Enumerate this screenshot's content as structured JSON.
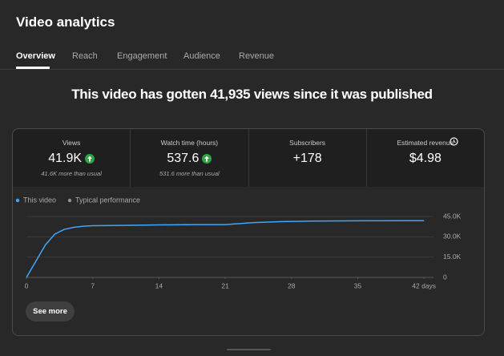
{
  "header": {
    "title": "Video analytics"
  },
  "tabs": [
    "Overview",
    "Reach",
    "Engagement",
    "Audience",
    "Revenue"
  ],
  "headline": "This video has gotten 41,935 views since it was published",
  "metrics": [
    {
      "label": "Views",
      "value": "41.9K",
      "note": "41.6K more than usual"
    },
    {
      "label": "Watch time (hours)",
      "value": "537.6",
      "note": "531.6 more than usual"
    },
    {
      "label": "Subscribers",
      "value": "+178"
    },
    {
      "label": "Estimated revenue",
      "value": "$4.98"
    }
  ],
  "chart_data": {
    "type": "line",
    "x": [
      0,
      1,
      2,
      3,
      4,
      5,
      6,
      7,
      10,
      14,
      18,
      21,
      24,
      27,
      30,
      35,
      42
    ],
    "series": [
      {
        "name": "This video",
        "color": "#3ea6ff",
        "values": [
          0,
          12000,
          24000,
          32000,
          35500,
          37000,
          37800,
          38200,
          38400,
          38800,
          39000,
          39000,
          40500,
          41200,
          41600,
          41800,
          41900
        ]
      }
    ],
    "other_legend": [
      {
        "name": "Typical performance",
        "color": "#909090"
      }
    ],
    "xlim": [
      0,
      43
    ],
    "xticks": [
      0,
      7,
      14,
      21,
      28,
      35,
      {
        "value": 42,
        "label": "42 days"
      }
    ],
    "ylim": [
      0,
      45000
    ],
    "yticks": [
      0,
      {
        "value": 15000,
        "label": "15.0K"
      },
      {
        "value": 30000,
        "label": "30.0K"
      },
      {
        "value": 45000,
        "label": "45.0K"
      }
    ],
    "grid": true
  },
  "button": "See more"
}
